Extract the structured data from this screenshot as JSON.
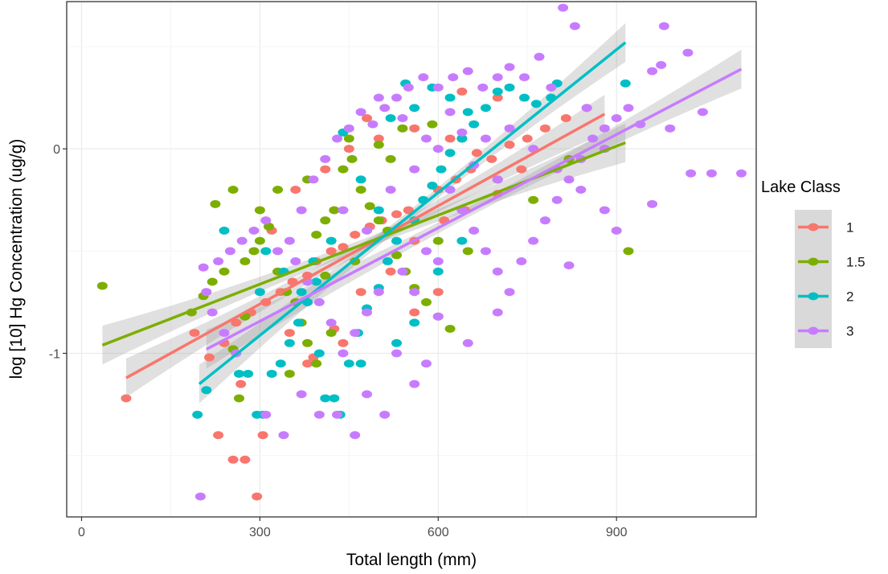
{
  "chart_data": {
    "type": "scatter",
    "xlabel": "Total length (mm)",
    "ylabel": "log [10] Hg Concentration (ug/g)",
    "xlim": [
      -25,
      1135
    ],
    "ylim": [
      -1.8,
      0.72
    ],
    "x_ticks": [
      0,
      300,
      600,
      900
    ],
    "x_tick_labels": [
      "0",
      "300",
      "600",
      "900"
    ],
    "y_ticks": [
      0,
      -1
    ],
    "y_tick_labels": [
      "0",
      "-1"
    ],
    "grid": true,
    "legend": {
      "title": "Lake Class",
      "position": "right"
    },
    "series": [
      {
        "name": "1",
        "color": "#F8766D",
        "fit": {
          "x": [
            75,
            880
          ],
          "y": [
            -1.12,
            0.17
          ]
        },
        "points": [
          [
            75,
            -1.22
          ],
          [
            230,
            -1.4
          ],
          [
            255,
            -1.52
          ],
          [
            275,
            -1.52
          ],
          [
            295,
            -1.7
          ],
          [
            305,
            -1.4
          ],
          [
            268,
            -1.15
          ],
          [
            190,
            -0.9
          ],
          [
            215,
            -1.02
          ],
          [
            240,
            -0.95
          ],
          [
            260,
            -0.85
          ],
          [
            285,
            -0.8
          ],
          [
            310,
            -0.75
          ],
          [
            335,
            -0.7
          ],
          [
            355,
            -0.65
          ],
          [
            380,
            -0.62
          ],
          [
            395,
            -0.55
          ],
          [
            420,
            -0.5
          ],
          [
            440,
            -0.48
          ],
          [
            460,
            -0.42
          ],
          [
            485,
            -0.38
          ],
          [
            505,
            -0.35
          ],
          [
            530,
            -0.32
          ],
          [
            550,
            -0.3
          ],
          [
            575,
            -0.25
          ],
          [
            600,
            -0.2
          ],
          [
            630,
            -0.15
          ],
          [
            655,
            -0.1
          ],
          [
            690,
            -0.05
          ],
          [
            720,
            0.02
          ],
          [
            750,
            0.05
          ],
          [
            780,
            0.1
          ],
          [
            815,
            0.15
          ],
          [
            850,
            0.2
          ],
          [
            390,
            -1.02
          ],
          [
            425,
            -0.88
          ],
          [
            470,
            -0.7
          ],
          [
            520,
            -0.6
          ],
          [
            560,
            -0.45
          ],
          [
            610,
            -0.35
          ],
          [
            645,
            -0.3
          ],
          [
            700,
            -0.22
          ],
          [
            740,
            -0.1
          ],
          [
            320,
            -0.4
          ],
          [
            360,
            -0.2
          ],
          [
            410,
            -0.1
          ],
          [
            450,
            0.0
          ],
          [
            500,
            0.05
          ],
          [
            560,
            0.1
          ],
          [
            620,
            0.05
          ],
          [
            665,
            -0.02
          ],
          [
            350,
            -0.9
          ],
          [
            380,
            -1.05
          ],
          [
            440,
            -0.95
          ],
          [
            560,
            -0.8
          ],
          [
            600,
            -0.7
          ],
          [
            480,
            0.15
          ],
          [
            640,
            0.28
          ],
          [
            700,
            0.25
          ]
        ]
      },
      {
        "name": "1.5",
        "color": "#7CAE00",
        "fit": {
          "x": [
            35,
            915
          ],
          "y": [
            -0.96,
            0.03
          ]
        },
        "points": [
          [
            35,
            -0.67
          ],
          [
            225,
            -0.27
          ],
          [
            255,
            -0.2
          ],
          [
            920,
            -0.5
          ],
          [
            185,
            -0.8
          ],
          [
            205,
            -0.72
          ],
          [
            220,
            -0.65
          ],
          [
            240,
            -0.6
          ],
          [
            255,
            -0.98
          ],
          [
            265,
            -1.22
          ],
          [
            275,
            -0.55
          ],
          [
            290,
            -0.5
          ],
          [
            300,
            -0.45
          ],
          [
            315,
            -0.38
          ],
          [
            330,
            -0.6
          ],
          [
            345,
            -0.7
          ],
          [
            360,
            -0.75
          ],
          [
            370,
            -0.85
          ],
          [
            380,
            -0.95
          ],
          [
            395,
            -0.42
          ],
          [
            410,
            -0.35
          ],
          [
            425,
            -0.3
          ],
          [
            440,
            -0.1
          ],
          [
            455,
            -0.05
          ],
          [
            470,
            -0.2
          ],
          [
            485,
            -0.28
          ],
          [
            500,
            -0.35
          ],
          [
            515,
            -0.4
          ],
          [
            530,
            -0.52
          ],
          [
            545,
            -0.6
          ],
          [
            560,
            -0.68
          ],
          [
            580,
            -0.75
          ],
          [
            600,
            -0.82
          ],
          [
            620,
            -0.88
          ],
          [
            350,
            -1.1
          ],
          [
            395,
            -1.05
          ],
          [
            420,
            -0.9
          ],
          [
            450,
            0.05
          ],
          [
            500,
            0.02
          ],
          [
            540,
            0.1
          ],
          [
            590,
            0.12
          ],
          [
            640,
            0.05
          ],
          [
            700,
            -0.15
          ],
          [
            760,
            -0.25
          ],
          [
            820,
            -0.05
          ],
          [
            880,
            0.0
          ],
          [
            300,
            -0.3
          ],
          [
            275,
            -0.82
          ],
          [
            330,
            -0.2
          ],
          [
            600,
            -0.45
          ],
          [
            650,
            -0.5
          ],
          [
            520,
            -0.05
          ],
          [
            460,
            -0.55
          ],
          [
            380,
            -0.15
          ],
          [
            410,
            -0.62
          ]
        ]
      },
      {
        "name": "2",
        "color": "#00BFC4",
        "fit": {
          "x": [
            198,
            915
          ],
          "y": [
            -1.15,
            0.52
          ]
        },
        "points": [
          [
            195,
            -1.3
          ],
          [
            210,
            -1.18
          ],
          [
            240,
            -0.4
          ],
          [
            265,
            -1.1
          ],
          [
            280,
            -1.1
          ],
          [
            295,
            -1.3
          ],
          [
            305,
            -1.3
          ],
          [
            320,
            -1.1
          ],
          [
            335,
            -1.05
          ],
          [
            350,
            -0.95
          ],
          [
            365,
            -0.85
          ],
          [
            380,
            -0.75
          ],
          [
            395,
            -0.65
          ],
          [
            410,
            -1.22
          ],
          [
            425,
            -1.22
          ],
          [
            435,
            -1.3
          ],
          [
            450,
            -1.05
          ],
          [
            465,
            -0.9
          ],
          [
            480,
            -0.78
          ],
          [
            500,
            -0.68
          ],
          [
            515,
            -0.55
          ],
          [
            530,
            -0.45
          ],
          [
            545,
            0.32
          ],
          [
            560,
            -0.35
          ],
          [
            575,
            -0.25
          ],
          [
            590,
            -0.18
          ],
          [
            605,
            -0.1
          ],
          [
            620,
            -0.02
          ],
          [
            640,
            0.05
          ],
          [
            660,
            0.12
          ],
          [
            680,
            0.2
          ],
          [
            700,
            0.28
          ],
          [
            720,
            0.3
          ],
          [
            745,
            0.25
          ],
          [
            765,
            0.22
          ],
          [
            790,
            0.25
          ],
          [
            800,
            0.32
          ],
          [
            915,
            0.32
          ],
          [
            440,
            0.08
          ],
          [
            470,
            -0.15
          ],
          [
            500,
            -0.3
          ],
          [
            520,
            0.15
          ],
          [
            560,
            0.2
          ],
          [
            590,
            0.3
          ],
          [
            620,
            0.25
          ],
          [
            650,
            0.18
          ],
          [
            420,
            -0.45
          ],
          [
            390,
            -0.55
          ],
          [
            370,
            -0.7
          ],
          [
            340,
            -0.6
          ],
          [
            310,
            -0.5
          ],
          [
            300,
            -0.7
          ],
          [
            400,
            -1.0
          ],
          [
            470,
            -1.05
          ],
          [
            530,
            -0.95
          ],
          [
            560,
            -0.85
          ],
          [
            600,
            -0.6
          ],
          [
            640,
            -0.45
          ]
        ]
      },
      {
        "name": "3",
        "color": "#C77CFF",
        "fit": {
          "x": [
            210,
            1110
          ],
          "y": [
            -0.98,
            0.39
          ]
        },
        "points": [
          [
            200,
            -1.7
          ],
          [
            810,
            0.69
          ],
          [
            830,
            0.6
          ],
          [
            980,
            0.6
          ],
          [
            1020,
            0.47
          ],
          [
            975,
            0.41
          ],
          [
            960,
            0.38
          ],
          [
            1110,
            -0.12
          ],
          [
            1060,
            -0.12
          ],
          [
            1025,
            -0.12
          ],
          [
            960,
            -0.27
          ],
          [
            990,
            0.1
          ],
          [
            1045,
            0.18
          ],
          [
            880,
            0.0
          ],
          [
            850,
            0.2
          ],
          [
            820,
            -0.57
          ],
          [
            700,
            -0.8
          ],
          [
            650,
            -0.95
          ],
          [
            600,
            -0.82
          ],
          [
            580,
            -1.05
          ],
          [
            560,
            -1.15
          ],
          [
            530,
            -1.0
          ],
          [
            510,
            -1.3
          ],
          [
            480,
            -1.2
          ],
          [
            460,
            -1.4
          ],
          [
            430,
            -1.3
          ],
          [
            400,
            -1.3
          ],
          [
            370,
            -1.2
          ],
          [
            340,
            -1.4
          ],
          [
            310,
            -1.3
          ],
          [
            260,
            -1.0
          ],
          [
            240,
            -0.9
          ],
          [
            220,
            -0.8
          ],
          [
            205,
            -0.58
          ],
          [
            210,
            -0.7
          ],
          [
            230,
            -0.55
          ],
          [
            250,
            -0.5
          ],
          [
            270,
            -0.45
          ],
          [
            290,
            -0.4
          ],
          [
            310,
            -0.35
          ],
          [
            330,
            -0.5
          ],
          [
            350,
            -0.45
          ],
          [
            370,
            -0.3
          ],
          [
            390,
            -0.15
          ],
          [
            410,
            -0.05
          ],
          [
            430,
            0.05
          ],
          [
            450,
            0.1
          ],
          [
            470,
            0.18
          ],
          [
            490,
            0.12
          ],
          [
            510,
            0.2
          ],
          [
            530,
            0.25
          ],
          [
            550,
            0.3
          ],
          [
            575,
            0.35
          ],
          [
            600,
            0.3
          ],
          [
            625,
            0.35
          ],
          [
            650,
            0.38
          ],
          [
            675,
            0.3
          ],
          [
            700,
            0.35
          ],
          [
            720,
            0.4
          ],
          [
            745,
            0.35
          ],
          [
            770,
            0.45
          ],
          [
            790,
            0.3
          ],
          [
            620,
            -0.2
          ],
          [
            640,
            -0.3
          ],
          [
            660,
            -0.4
          ],
          [
            680,
            -0.5
          ],
          [
            700,
            -0.6
          ],
          [
            720,
            -0.7
          ],
          [
            740,
            -0.55
          ],
          [
            760,
            -0.45
          ],
          [
            780,
            -0.35
          ],
          [
            800,
            -0.25
          ],
          [
            820,
            -0.15
          ],
          [
            840,
            -0.05
          ],
          [
            860,
            0.05
          ],
          [
            880,
            0.1
          ],
          [
            900,
            0.15
          ],
          [
            920,
            0.2
          ],
          [
            940,
            0.12
          ],
          [
            540,
            -0.6
          ],
          [
            560,
            -0.7
          ],
          [
            580,
            -0.5
          ],
          [
            600,
            -0.55
          ],
          [
            500,
            -0.7
          ],
          [
            480,
            -0.8
          ],
          [
            460,
            -0.9
          ],
          [
            440,
            -1.0
          ],
          [
            420,
            -0.85
          ],
          [
            400,
            -0.75
          ],
          [
            380,
            -0.65
          ],
          [
            360,
            -0.55
          ],
          [
            440,
            -0.3
          ],
          [
            480,
            -0.4
          ],
          [
            520,
            -0.2
          ],
          [
            560,
            -0.1
          ],
          [
            600,
            0.0
          ],
          [
            640,
            0.08
          ],
          [
            680,
            0.05
          ],
          [
            720,
            0.1
          ],
          [
            760,
            0.0
          ],
          [
            800,
            -0.1
          ],
          [
            840,
            -0.2
          ],
          [
            880,
            -0.3
          ],
          [
            900,
            -0.4
          ],
          [
            500,
            0.25
          ],
          [
            540,
            0.15
          ],
          [
            580,
            0.05
          ],
          [
            620,
            0.18
          ],
          [
            660,
            -0.08
          ],
          [
            700,
            -0.15
          ]
        ]
      }
    ]
  }
}
